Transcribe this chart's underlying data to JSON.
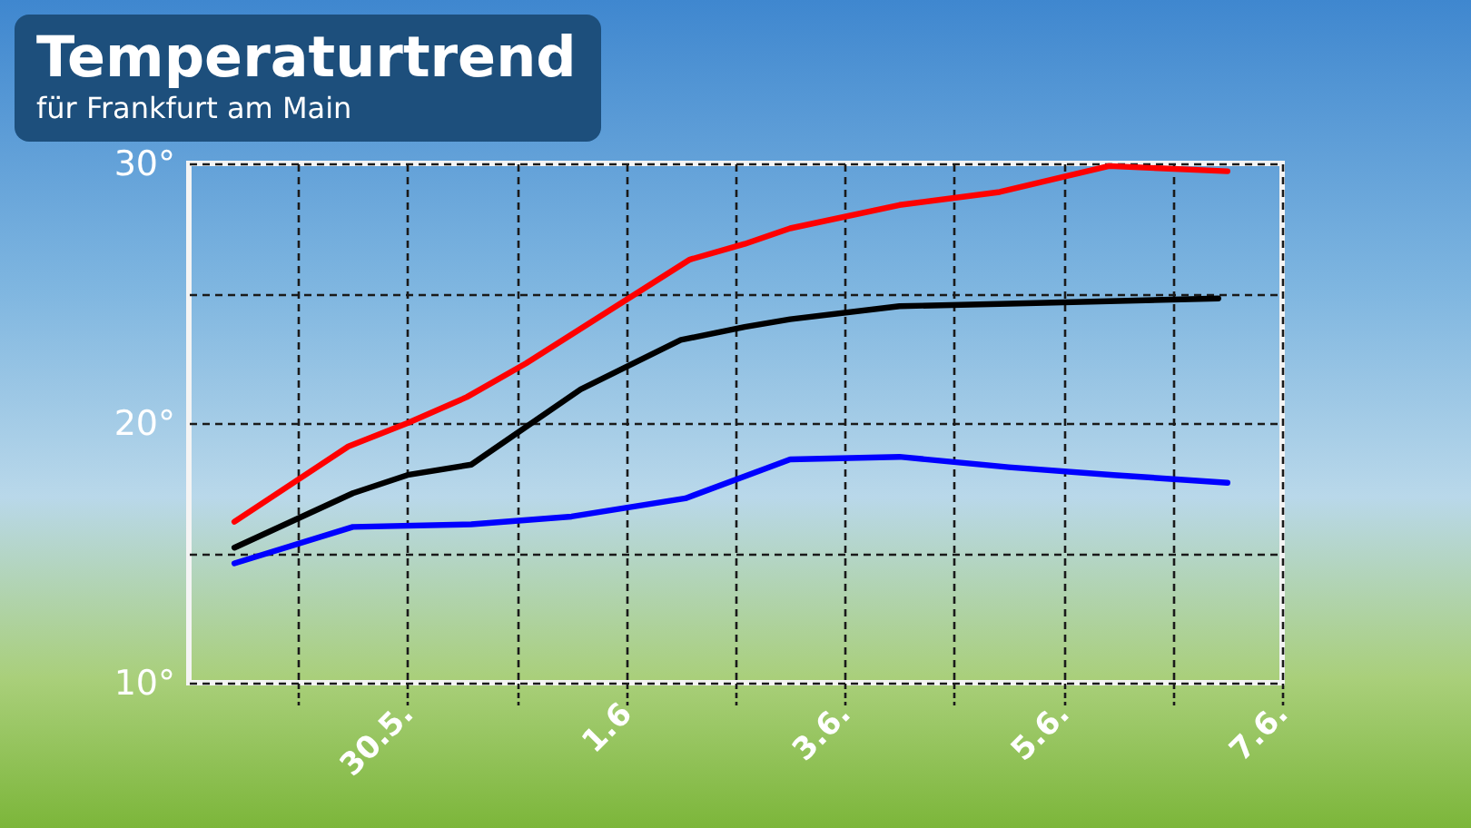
{
  "chart_data": {
    "type": "line",
    "title": "Temperaturtrend",
    "subtitle": "für Frankfurt am Main",
    "series": [
      {
        "color": "#ff0000",
        "x": [
          "--05-28T10:00",
          "--05-29T11:00",
          "--05-30T00:00",
          "--05-30T13:00",
          "--05-31T02:00",
          "--06-01T14:00",
          "--06-02T02:00",
          "--06-02T12:00",
          "--06-03T12:00",
          "--06-04T10:00",
          "--06-05T10:00",
          "--06-06T12:00"
        ],
        "values": [
          16.2,
          19.1,
          20.0,
          21.0,
          22.3,
          26.3,
          26.9,
          27.5,
          28.4,
          28.9,
          29.9,
          29.7
        ]
      },
      {
        "color": "#000000",
        "x": [
          "--05-28T10:00",
          "--05-29T12:00",
          "--05-30T00:00",
          "--05-30T14:00",
          "--05-31T14:00",
          "--06-01T12:00",
          "--06-02T02:00",
          "--06-02T12:00",
          "--06-03T12:00",
          "--06-04T12:00",
          "--06-06T10:00"
        ],
        "values": [
          15.2,
          17.3,
          18.0,
          18.4,
          21.3,
          23.2,
          23.7,
          24.0,
          24.5,
          24.6,
          24.8
        ]
      },
      {
        "color": "#0000ff",
        "x": [
          "--05-28T10:00",
          "--05-29T12:00",
          "--05-30T14:00",
          "--05-31T12:00",
          "--06-01T13:00",
          "--06-02T12:00",
          "--06-03T12:00",
          "--06-04T12:00",
          "--06-05T11:00",
          "--06-06T12:00"
        ],
        "values": [
          14.6,
          16.0,
          16.1,
          16.4,
          17.1,
          18.6,
          18.7,
          18.3,
          18.0,
          17.7
        ]
      }
    ],
    "xlim": [
      "--05-28",
      "--06-07"
    ],
    "xticks": [
      {
        "value": "--05-29",
        "label": null
      },
      {
        "value": "--05-30",
        "label": "30.5."
      },
      {
        "value": "--05-31",
        "label": null
      },
      {
        "value": "--06-01",
        "label": "1.6"
      },
      {
        "value": "--06-02",
        "label": null
      },
      {
        "value": "--06-03",
        "label": "3.6."
      },
      {
        "value": "--06-04",
        "label": null
      },
      {
        "value": "--06-05",
        "label": "5.6."
      },
      {
        "value": "--06-06",
        "label": null
      },
      {
        "value": "--06-07",
        "label": "7.6."
      }
    ],
    "ylim": [
      10,
      30
    ],
    "yticks": [
      {
        "value": 10,
        "label": "10°"
      },
      {
        "value": 15,
        "label": null
      },
      {
        "value": 20,
        "label": "20°"
      },
      {
        "value": 25,
        "label": null
      },
      {
        "value": 30,
        "label": "30°"
      }
    ],
    "grid": true
  }
}
